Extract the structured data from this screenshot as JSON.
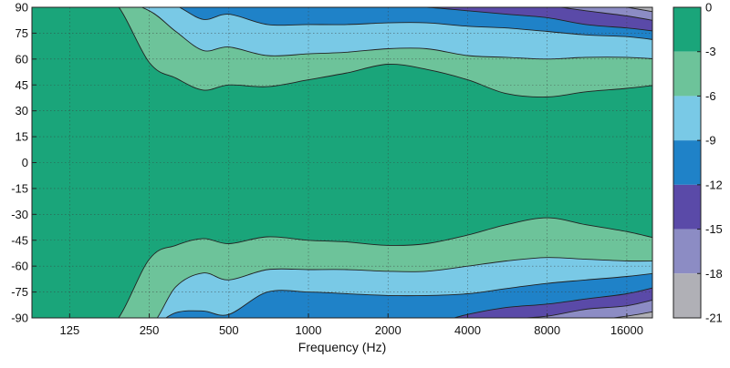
{
  "chart_data": {
    "type": "heatmap",
    "subtype": "filled-contour",
    "title": "",
    "xlabel": "Frequency (Hz)",
    "ylabel": "",
    "x_scale": "log2",
    "xlim": [
      90,
      20000
    ],
    "ylim": [
      -90,
      90
    ],
    "x_ticks": [
      125,
      250,
      500,
      1000,
      2000,
      4000,
      8000,
      16000
    ],
    "x_tick_labels": [
      "125",
      "250",
      "500",
      "1000",
      "2000",
      "4000",
      "8000",
      "16000"
    ],
    "y_ticks": [
      90,
      75,
      60,
      45,
      30,
      15,
      0,
      -15,
      -30,
      -45,
      -60,
      -75,
      -90
    ],
    "y_tick_labels": [
      "90",
      "75",
      "60",
      "45",
      "30",
      "15",
      "0",
      "-15",
      "-30",
      "-45",
      "-60",
      "-75",
      "-90"
    ],
    "grid": true,
    "colorbar": {
      "position": "right",
      "levels": [
        0,
        -3,
        -6,
        -9,
        -12,
        -15,
        -18,
        -21
      ],
      "level_labels": [
        "0",
        "-3",
        "-6",
        "-9",
        "-12",
        "-15",
        "-18",
        "-21"
      ],
      "colors": [
        "#1aa57a",
        "#6dc39a",
        "#79c9e6",
        "#1f82c8",
        "#5a4aa8",
        "#8c8cc4",
        "#b0b0b6"
      ]
    },
    "contour_boundaries": {
      "frequency_hz": [
        90,
        125,
        180,
        250,
        315,
        400,
        500,
        700,
        1000,
        1400,
        2000,
        2800,
        4000,
        5600,
        8000,
        11200,
        16000,
        20000
      ],
      "upper_angle_deg": {
        "-3": [
          95,
          95,
          95,
          58,
          49,
          42,
          45,
          44,
          48,
          52,
          57,
          54,
          48,
          40,
          38,
          41,
          43,
          45
        ],
        "-6": [
          95,
          95,
          95,
          88,
          76,
          65,
          67,
          62,
          63,
          64,
          66,
          66,
          62,
          61,
          60,
          61,
          61,
          60
        ],
        "-9": [
          95,
          95,
          95,
          95,
          91,
          83,
          86,
          80,
          80,
          80,
          81,
          81,
          79,
          78,
          76,
          74,
          73,
          71
        ],
        "-12": [
          95,
          95,
          95,
          95,
          95,
          95,
          95,
          95,
          92,
          92,
          91,
          90,
          88,
          86,
          84,
          80,
          78,
          76
        ],
        "-15": [
          95,
          95,
          95,
          95,
          95,
          95,
          95,
          95,
          95,
          95,
          95,
          95,
          95,
          93,
          91,
          88,
          85,
          82
        ],
        "-18": [
          95,
          95,
          95,
          95,
          95,
          95,
          95,
          95,
          95,
          95,
          95,
          95,
          95,
          95,
          95,
          93,
          90,
          87
        ]
      },
      "lower_angle_deg": {
        "-3": [
          -95,
          -95,
          -95,
          -56,
          -48,
          -44,
          -47,
          -43,
          -45,
          -46,
          -48,
          -47,
          -42,
          -36,
          -32,
          -36,
          -40,
          -44
        ],
        "-6": [
          -95,
          -95,
          -95,
          -95,
          -72,
          -64,
          -68,
          -62,
          -62,
          -62,
          -63,
          -63,
          -60,
          -57,
          -55,
          -56,
          -57,
          -57
        ],
        "-9": [
          -95,
          -95,
          -95,
          -95,
          -87,
          -86,
          -88,
          -75,
          -75,
          -76,
          -77,
          -77,
          -76,
          -73,
          -70,
          -68,
          -66,
          -64
        ],
        "-12": [
          -95,
          -95,
          -95,
          -95,
          -95,
          -95,
          -95,
          -95,
          -95,
          -95,
          -95,
          -94,
          -88,
          -84,
          -82,
          -79,
          -76,
          -72
        ],
        "-15": [
          -95,
          -95,
          -95,
          -95,
          -95,
          -95,
          -95,
          -95,
          -95,
          -95,
          -95,
          -95,
          -95,
          -91,
          -89,
          -85,
          -83,
          -79
        ],
        "-18": [
          -95,
          -95,
          -95,
          -95,
          -95,
          -95,
          -95,
          -95,
          -95,
          -95,
          -95,
          -95,
          -95,
          -95,
          -95,
          -92,
          -89,
          -86
        ]
      }
    }
  }
}
